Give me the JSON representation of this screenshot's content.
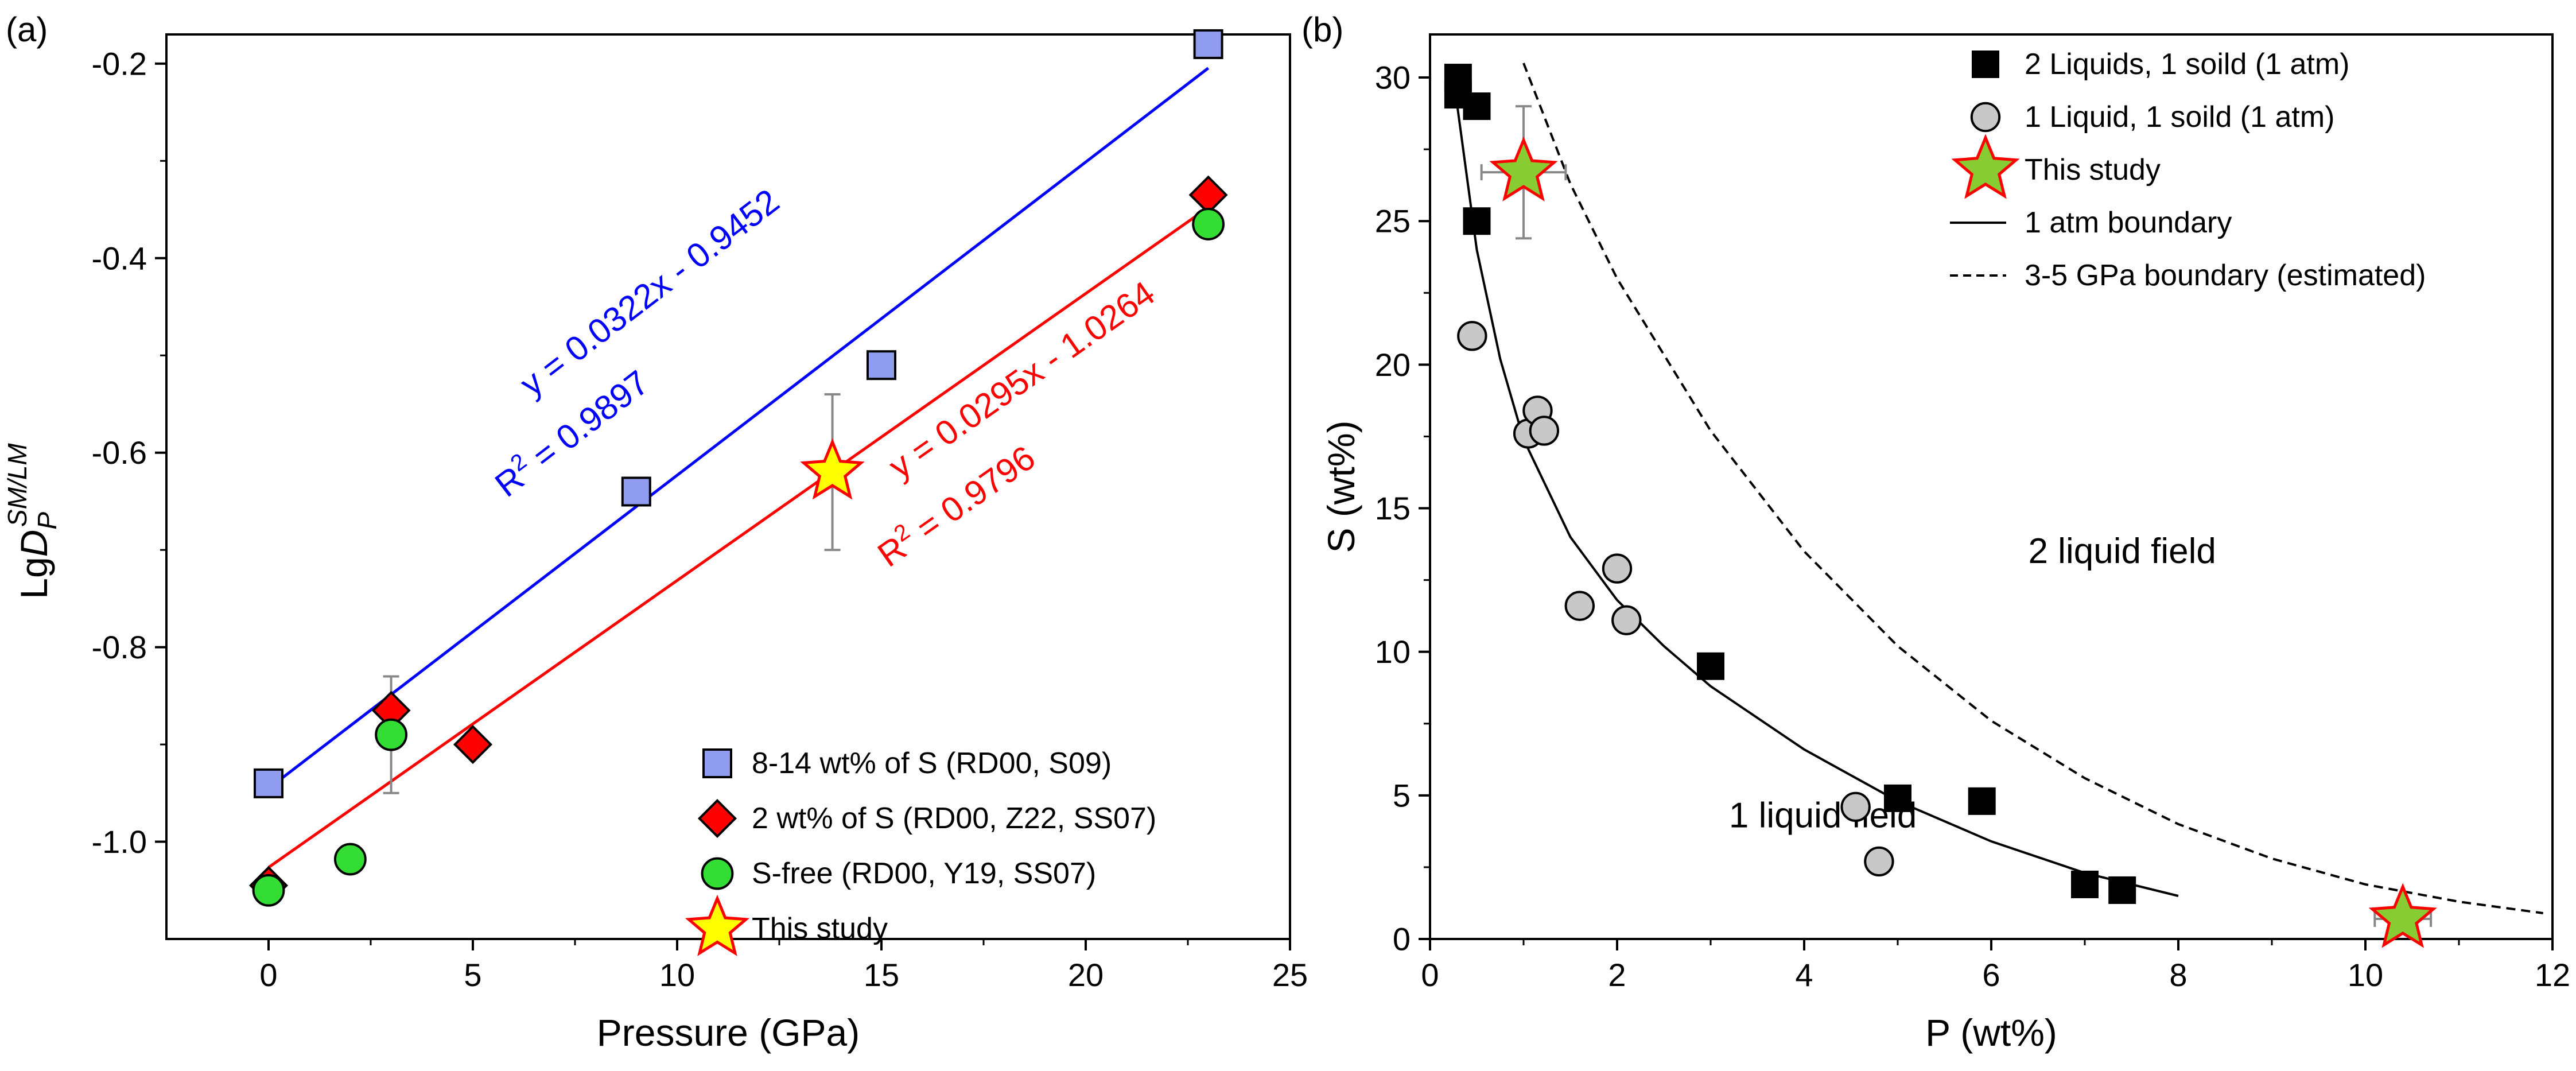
{
  "chart_data": [
    {
      "type": "scatter",
      "panel_label": "(a)",
      "xlabel": "Pressure (GPa)",
      "ylabel": "LgD_P^(SM/LM)",
      "ylabel_main": "LgD",
      "ylabel_sub": "P",
      "ylabel_sup": "SM/LM",
      "xlim": [
        -2.5,
        25
      ],
      "ylim": [
        -1.1,
        -0.17
      ],
      "xticks": [
        0,
        5,
        10,
        15,
        20,
        25
      ],
      "yticks": [
        -1.0,
        -0.8,
        -0.6,
        -0.4,
        -0.2
      ],
      "xtick_labels": [
        "0",
        "5",
        "10",
        "15",
        "20",
        "25"
      ],
      "ytick_labels": [
        "-1.0",
        "-0.8",
        "-0.6",
        "-0.4",
        "-0.2"
      ],
      "grid": false,
      "legend_position": "bottom-right",
      "series": [
        {
          "name": "8-14 wt% of S (RD00, S09)",
          "marker": "square",
          "color": "#8f9cf0",
          "points": [
            [
              0,
              -0.94
            ],
            [
              9,
              -0.64
            ],
            [
              15,
              -0.51
            ],
            [
              23,
              -0.18
            ]
          ]
        },
        {
          "name": "2 wt% of S (RD00, Z22, SS07)",
          "marker": "diamond",
          "color": "#ff0000",
          "points": [
            [
              0,
              -1.045
            ],
            [
              3,
              -0.865
            ],
            [
              5,
              -0.9
            ],
            [
              23,
              -0.335
            ]
          ]
        },
        {
          "name": "S-free (RD00, Y19, SS07)",
          "marker": "circle",
          "color": "#33dd33",
          "points": [
            [
              0,
              -1.05
            ],
            [
              2,
              -1.018
            ],
            [
              3,
              -0.89
            ],
            [
              23,
              -0.365
            ]
          ]
        },
        {
          "name": "This study",
          "marker": "star",
          "color": "#ffff00",
          "edge": "#ff0000",
          "points": [
            [
              13.8,
              -0.62
            ]
          ],
          "yerr": [
            0.08
          ]
        }
      ],
      "error_bars": [
        {
          "x": 3,
          "y": -0.89,
          "err": 0.06
        }
      ],
      "fits": [
        {
          "color": "#0000ff",
          "x_range": [
            0,
            23
          ],
          "slope": 0.0322,
          "intercept": -0.9452,
          "equation": "y = 0.0322x - 0.9452",
          "r2_prefix": "R",
          "r2_sup": "2",
          "r2_value": " = 0.9897"
        },
        {
          "color": "#ff0000",
          "x_range": [
            0,
            23
          ],
          "slope": 0.0295,
          "intercept": -1.0264,
          "equation": "y = 0.0295x - 1.0264",
          "r2_prefix": "R",
          "r2_sup": "2",
          "r2_value": " = 0.9796"
        }
      ]
    },
    {
      "type": "scatter",
      "panel_label": "(b)",
      "xlabel": "P (wt%)",
      "ylabel": "S (wt%)",
      "xlim": [
        0,
        12
      ],
      "ylim": [
        0,
        31.5
      ],
      "xticks": [
        0,
        2,
        4,
        6,
        8,
        10,
        12
      ],
      "yticks": [
        0,
        5,
        10,
        15,
        20,
        25,
        30
      ],
      "xtick_labels": [
        "0",
        "2",
        "4",
        "6",
        "8",
        "10",
        "12"
      ],
      "ytick_labels": [
        "0",
        "5",
        "10",
        "15",
        "20",
        "25",
        "30"
      ],
      "grid": false,
      "legend_position": "top-right",
      "annotations": [
        {
          "text": "2 liquid field",
          "x": 7.4,
          "y": 13.5
        },
        {
          "text": "1 liquid field",
          "x": 4.2,
          "y": 4.3
        }
      ],
      "series": [
        {
          "name": "2 Liquids, 1 soild (1 atm)",
          "marker": "square",
          "color": "#000000",
          "points": [
            [
              0.3,
              30.0
            ],
            [
              0.3,
              29.4
            ],
            [
              0.5,
              29.0
            ],
            [
              0.5,
              25.0
            ],
            [
              3.0,
              9.5
            ],
            [
              5.0,
              4.9
            ],
            [
              5.9,
              4.8
            ],
            [
              7.0,
              1.9
            ],
            [
              7.4,
              1.7
            ]
          ]
        },
        {
          "name": "1 Liquid, 1 soild (1 atm)",
          "marker": "circle",
          "color": "#c8c8c8",
          "points": [
            [
              0.45,
              21.0
            ],
            [
              1.05,
              17.6
            ],
            [
              1.15,
              18.4
            ],
            [
              1.22,
              17.7
            ],
            [
              1.6,
              11.6
            ],
            [
              2.0,
              12.9
            ],
            [
              2.1,
              11.1
            ],
            [
              4.55,
              4.6
            ],
            [
              4.8,
              2.7
            ]
          ]
        },
        {
          "name": "This study",
          "marker": "star",
          "color": "#88cc33",
          "edge": "#ff0000",
          "points": [
            [
              1.0,
              26.7
            ],
            [
              10.4,
              0.7
            ]
          ],
          "xerr": [
            0.45,
            0.3
          ],
          "yerr": [
            2.3,
            0.3
          ]
        },
        {
          "name": "1 atm boundary",
          "line": "solid",
          "color": "#000000",
          "points": [
            [
              0.25,
              30.0
            ],
            [
              0.5,
              24.0
            ],
            [
              0.75,
              20.2
            ],
            [
              1.0,
              17.4
            ],
            [
              1.5,
              14.0
            ],
            [
              2.0,
              11.8
            ],
            [
              2.5,
              10.2
            ],
            [
              3.0,
              8.8
            ],
            [
              4.0,
              6.6
            ],
            [
              5.0,
              4.8
            ],
            [
              6.0,
              3.4
            ],
            [
              7.0,
              2.3
            ],
            [
              8.0,
              1.5
            ]
          ]
        },
        {
          "name": "3-5 GPa boundary (estimated)",
          "line": "dashed",
          "color": "#000000",
          "points": [
            [
              1.0,
              30.5
            ],
            [
              1.5,
              26.3
            ],
            [
              2.0,
              23.0
            ],
            [
              3.0,
              17.7
            ],
            [
              4.0,
              13.5
            ],
            [
              5.0,
              10.2
            ],
            [
              6.0,
              7.6
            ],
            [
              7.0,
              5.6
            ],
            [
              8.0,
              4.0
            ],
            [
              9.0,
              2.8
            ],
            [
              10.0,
              1.9
            ],
            [
              11.0,
              1.3
            ],
            [
              11.9,
              0.9
            ]
          ]
        }
      ]
    }
  ]
}
